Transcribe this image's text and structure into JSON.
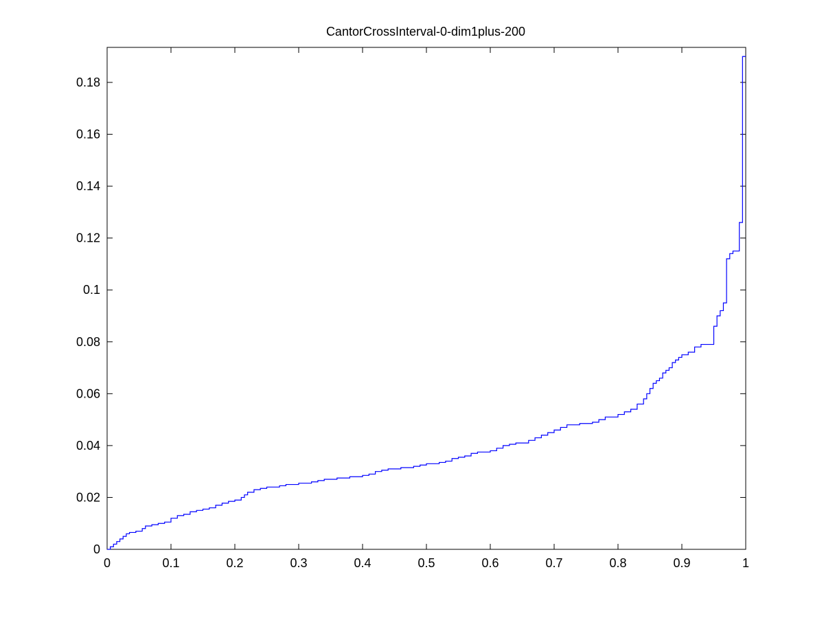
{
  "chart_data": {
    "type": "line",
    "style": "stairs",
    "title": "CantorCrossInterval-0-dim1plus-200",
    "xlabel": "",
    "ylabel": "",
    "xlim": [
      0,
      1
    ],
    "ylim": [
      0,
      0.1935
    ],
    "grid": false,
    "x_ticks": [
      0,
      0.1,
      0.2,
      0.3,
      0.4,
      0.5,
      0.6,
      0.7,
      0.8,
      0.9,
      1
    ],
    "x_tick_labels": [
      "0",
      "0.1",
      "0.2",
      "0.3",
      "0.4",
      "0.5",
      "0.6",
      "0.7",
      "0.8",
      "0.9",
      "1"
    ],
    "y_ticks": [
      0,
      0.02,
      0.04,
      0.06,
      0.08,
      0.1,
      0.12,
      0.14,
      0.16,
      0.18
    ],
    "y_tick_labels": [
      "0",
      "0.02",
      "0.04",
      "0.06",
      "0.08",
      "0.1",
      "0.12",
      "0.14",
      "0.16",
      "0.18"
    ],
    "colors": {
      "line": "#0000ff",
      "axes": "#000000",
      "background": "#ffffff"
    },
    "series": [
      {
        "name": "CantorCrossInterval-0-dim1plus-200",
        "x": [
          0,
          0.005,
          0.01,
          0.015,
          0.02,
          0.025,
          0.03,
          0.035,
          0.045,
          0.055,
          0.06,
          0.07,
          0.08,
          0.09,
          0.1,
          0.11,
          0.12,
          0.13,
          0.14,
          0.15,
          0.16,
          0.17,
          0.18,
          0.19,
          0.2,
          0.21,
          0.215,
          0.22,
          0.23,
          0.24,
          0.25,
          0.27,
          0.28,
          0.3,
          0.32,
          0.33,
          0.34,
          0.36,
          0.38,
          0.4,
          0.41,
          0.42,
          0.43,
          0.44,
          0.46,
          0.48,
          0.49,
          0.5,
          0.52,
          0.53,
          0.54,
          0.55,
          0.56,
          0.57,
          0.58,
          0.6,
          0.61,
          0.62,
          0.63,
          0.64,
          0.66,
          0.67,
          0.68,
          0.69,
          0.7,
          0.71,
          0.72,
          0.74,
          0.76,
          0.77,
          0.78,
          0.8,
          0.81,
          0.82,
          0.83,
          0.84,
          0.845,
          0.85,
          0.855,
          0.86,
          0.865,
          0.87,
          0.875,
          0.88,
          0.885,
          0.89,
          0.895,
          0.9,
          0.91,
          0.92,
          0.93,
          0.95,
          0.955,
          0.96,
          0.965,
          0.97,
          0.975,
          0.98,
          0.99,
          0.995,
          1.0
        ],
        "values": [
          0,
          0.001,
          0.002,
          0.003,
          0.004,
          0.005,
          0.006,
          0.0065,
          0.007,
          0.008,
          0.009,
          0.0095,
          0.01,
          0.0105,
          0.012,
          0.013,
          0.0135,
          0.0145,
          0.015,
          0.0155,
          0.016,
          0.017,
          0.0178,
          0.0185,
          0.019,
          0.02,
          0.021,
          0.022,
          0.023,
          0.0235,
          0.024,
          0.0245,
          0.025,
          0.0255,
          0.026,
          0.0265,
          0.027,
          0.0275,
          0.028,
          0.0285,
          0.029,
          0.03,
          0.0305,
          0.031,
          0.0315,
          0.032,
          0.0325,
          0.033,
          0.0335,
          0.034,
          0.035,
          0.0355,
          0.036,
          0.037,
          0.0375,
          0.038,
          0.039,
          0.04,
          0.0405,
          0.041,
          0.042,
          0.043,
          0.044,
          0.045,
          0.046,
          0.047,
          0.048,
          0.0485,
          0.049,
          0.05,
          0.051,
          0.052,
          0.053,
          0.054,
          0.056,
          0.058,
          0.06,
          0.062,
          0.064,
          0.065,
          0.066,
          0.068,
          0.069,
          0.07,
          0.072,
          0.073,
          0.074,
          0.075,
          0.076,
          0.078,
          0.079,
          0.086,
          0.09,
          0.092,
          0.095,
          0.112,
          0.114,
          0.115,
          0.126,
          0.19,
          0.19
        ]
      }
    ]
  }
}
